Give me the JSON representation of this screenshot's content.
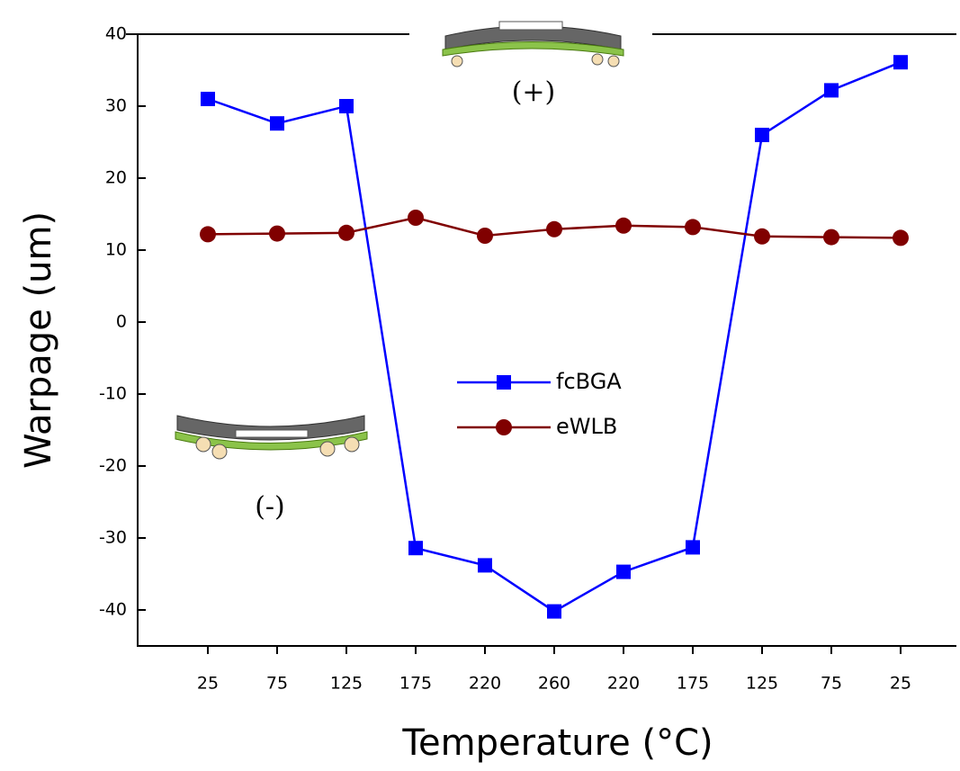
{
  "chart_data": {
    "type": "line",
    "x_label": "Temperature (°C)",
    "y_label": "Warpage (um)",
    "categories": [
      "25",
      "75",
      "125",
      "175",
      "220",
      "260",
      "220",
      "175",
      "125",
      "75",
      "25"
    ],
    "series": [
      {
        "name": "fcBGA",
        "color": "#0000ff",
        "marker": "square",
        "values": [
          31,
          27.6,
          30,
          -31.4,
          -33.8,
          -40.2,
          -34.7,
          -31.3,
          26,
          32.2,
          36.1
        ]
      },
      {
        "name": "eWLB",
        "color": "#800000",
        "marker": "circle",
        "values": [
          12.2,
          12.3,
          12.4,
          14.5,
          12.0,
          12.9,
          13.4,
          13.2,
          11.9,
          11.8,
          11.7
        ]
      }
    ],
    "ylim": [
      -45,
      40
    ],
    "yticks": [
      -40,
      -30,
      -20,
      -10,
      0,
      10,
      20,
      30,
      40
    ],
    "annotations": [
      "(+)",
      "(-)"
    ]
  }
}
